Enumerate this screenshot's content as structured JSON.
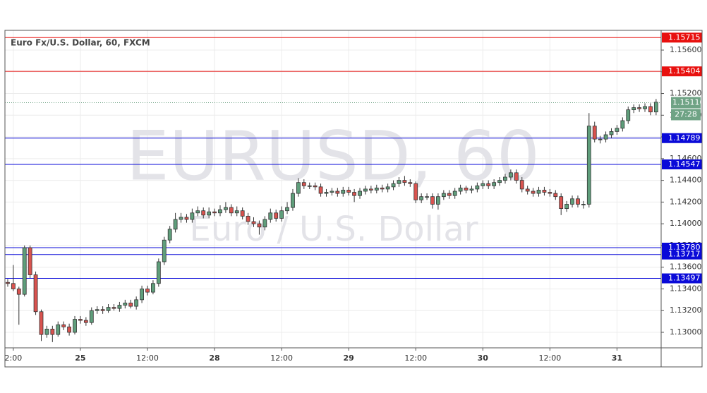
{
  "chart_data": {
    "type": "candlestick",
    "title": "Euro Fx/U.S. Dollar, 60, FXCM",
    "watermark": "EURUSD, 60",
    "watermark_subtitle": "Euro / U.S. Dollar",
    "up_color": "#5f9e7b",
    "down_color": "#d9534f",
    "x": [
      0,
      1,
      2,
      3,
      4,
      5,
      6,
      7,
      8,
      9,
      10,
      11,
      12,
      13,
      14,
      15,
      16,
      17,
      18,
      19,
      20,
      21,
      22,
      23,
      24,
      25,
      26,
      27,
      28,
      29,
      30,
      31,
      32,
      33,
      34,
      35,
      36,
      37,
      38,
      39,
      40,
      41,
      42,
      43,
      44,
      45,
      46,
      47,
      48,
      49,
      50,
      51,
      52,
      53,
      54,
      55,
      56,
      57,
      58,
      59,
      60,
      61,
      62,
      63,
      64,
      65,
      66,
      67,
      68,
      69,
      70,
      71,
      72,
      73,
      74,
      75,
      76,
      77,
      78,
      79,
      80,
      81,
      82,
      83,
      84,
      85,
      86,
      87,
      88,
      89,
      90,
      91,
      92,
      93,
      94,
      95,
      96,
      97,
      98,
      99,
      100,
      101,
      102,
      103,
      104,
      105,
      106,
      107,
      108,
      109,
      110,
      111,
      112,
      113,
      114,
      115,
      116
    ],
    "open": [
      1.1346,
      1.1345,
      1.134,
      1.1335,
      1.1378,
      1.1353,
      1.1319,
      1.1298,
      1.1303,
      1.1298,
      1.1307,
      1.1305,
      1.13,
      1.1312,
      1.1311,
      1.1309,
      1.132,
      1.1321,
      1.132,
      1.1323,
      1.1322,
      1.1325,
      1.1327,
      1.1324,
      1.133,
      1.134,
      1.1337,
      1.1345,
      1.1365,
      1.1385,
      1.1395,
      1.1404,
      1.1406,
      1.1404,
      1.141,
      1.1412,
      1.1408,
      1.1411,
      1.141,
      1.1413,
      1.1415,
      1.141,
      1.1412,
      1.1407,
      1.1402,
      1.14,
      1.1397,
      1.1404,
      1.141,
      1.1405,
      1.1412,
      1.1415,
      1.1428,
      1.1438,
      1.1435,
      1.1435,
      1.1434,
      1.1428,
      1.1429,
      1.143,
      1.1428,
      1.1431,
      1.1429,
      1.1426,
      1.143,
      1.1432,
      1.1431,
      1.1433,
      1.1432,
      1.1434,
      1.1437,
      1.144,
      1.1438,
      1.1437,
      1.1422,
      1.1425,
      1.1425,
      1.1418,
      1.1425,
      1.1428,
      1.1426,
      1.143,
      1.1433,
      1.1431,
      1.1432,
      1.1435,
      1.1437,
      1.1435,
      1.1438,
      1.144,
      1.1443,
      1.1447,
      1.144,
      1.1432,
      1.143,
      1.1428,
      1.1431,
      1.1429,
      1.1428,
      1.1425,
      1.1414,
      1.1418,
      1.1423,
      1.1418,
      1.1418,
      1.149,
      1.1478,
      1.1478,
      1.1482,
      1.1485,
      1.1488,
      1.1495,
      1.1505,
      1.1507,
      1.1506,
      1.1508,
      1.1503
    ],
    "high": [
      1.1349,
      1.1362,
      1.1342,
      1.138,
      1.138,
      1.1356,
      1.1321,
      1.1306,
      1.1306,
      1.131,
      1.131,
      1.1308,
      1.1315,
      1.1315,
      1.1314,
      1.1323,
      1.1324,
      1.1324,
      1.1326,
      1.1326,
      1.1328,
      1.133,
      1.133,
      1.1333,
      1.1343,
      1.1343,
      1.1348,
      1.1368,
      1.1388,
      1.1398,
      1.141,
      1.141,
      1.1409,
      1.1414,
      1.1416,
      1.1415,
      1.1415,
      1.1414,
      1.1417,
      1.142,
      1.1418,
      1.1416,
      1.1415,
      1.141,
      1.1406,
      1.1403,
      1.1407,
      1.1414,
      1.1413,
      1.1416,
      1.142,
      1.1432,
      1.1442,
      1.1441,
      1.1438,
      1.1438,
      1.1437,
      1.1432,
      1.1433,
      1.1433,
      1.1434,
      1.1434,
      1.1432,
      1.1433,
      1.1435,
      1.1435,
      1.1436,
      1.1436,
      1.1437,
      1.144,
      1.1443,
      1.1444,
      1.1441,
      1.1439,
      1.1428,
      1.1428,
      1.1428,
      1.1428,
      1.1431,
      1.1431,
      1.1433,
      1.1436,
      1.1435,
      1.1435,
      1.1438,
      1.144,
      1.144,
      1.1441,
      1.1443,
      1.1446,
      1.145,
      1.145,
      1.1443,
      1.1435,
      1.1433,
      1.1434,
      1.1434,
      1.1432,
      1.1431,
      1.1428,
      1.1421,
      1.1426,
      1.1426,
      1.1421,
      1.1502,
      1.1494,
      1.1481,
      1.1485,
      1.1488,
      1.1491,
      1.1498,
      1.1508,
      1.151,
      1.151,
      1.1511,
      1.1511,
      1.1515
    ],
    "low": [
      1.1342,
      1.1338,
      1.1307,
      1.1333,
      1.135,
      1.1316,
      1.1292,
      1.1295,
      1.1291,
      1.1296,
      1.1302,
      1.1297,
      1.1298,
      1.1308,
      1.1306,
      1.1307,
      1.1317,
      1.1317,
      1.1318,
      1.132,
      1.1319,
      1.1322,
      1.1322,
      1.1321,
      1.1327,
      1.1334,
      1.1335,
      1.1342,
      1.1362,
      1.1382,
      1.1392,
      1.1401,
      1.1401,
      1.1401,
      1.1407,
      1.1405,
      1.1405,
      1.1407,
      1.1407,
      1.141,
      1.1407,
      1.1407,
      1.1404,
      1.1399,
      1.1397,
      1.139,
      1.1394,
      1.1401,
      1.1402,
      1.1402,
      1.1409,
      1.1412,
      1.1425,
      1.1432,
      1.1432,
      1.1431,
      1.1425,
      1.1425,
      1.1426,
      1.1425,
      1.1425,
      1.1426,
      1.142,
      1.1423,
      1.1427,
      1.1428,
      1.1428,
      1.1429,
      1.1429,
      1.1431,
      1.1434,
      1.1435,
      1.1434,
      1.1419,
      1.1419,
      1.1422,
      1.1414,
      1.1413,
      1.1422,
      1.1423,
      1.1423,
      1.1427,
      1.1428,
      1.1428,
      1.1429,
      1.1432,
      1.1432,
      1.1432,
      1.1435,
      1.1437,
      1.144,
      1.1437,
      1.1429,
      1.1427,
      1.1425,
      1.1425,
      1.1426,
      1.1425,
      1.1422,
      1.1408,
      1.1411,
      1.1415,
      1.1415,
      1.1414,
      1.1415,
      1.1475,
      1.1474,
      1.1475,
      1.1479,
      1.1482,
      1.1485,
      1.1492,
      1.1502,
      1.1503,
      1.1503,
      1.15,
      1.15
    ],
    "close": [
      1.1345,
      1.134,
      1.1335,
      1.1378,
      1.1353,
      1.1319,
      1.1298,
      1.1303,
      1.1298,
      1.1307,
      1.1305,
      1.13,
      1.1312,
      1.1311,
      1.1309,
      1.132,
      1.1321,
      1.132,
      1.1323,
      1.1322,
      1.1325,
      1.1327,
      1.1324,
      1.133,
      1.134,
      1.1337,
      1.1345,
      1.1365,
      1.1385,
      1.1395,
      1.1404,
      1.1406,
      1.1404,
      1.141,
      1.1412,
      1.1408,
      1.1411,
      1.141,
      1.1413,
      1.1415,
      1.141,
      1.1412,
      1.1407,
      1.1402,
      1.14,
      1.1397,
      1.1404,
      1.141,
      1.1405,
      1.1412,
      1.1415,
      1.1428,
      1.1438,
      1.1435,
      1.1435,
      1.1434,
      1.1428,
      1.1429,
      1.143,
      1.1428,
      1.1431,
      1.1429,
      1.1426,
      1.143,
      1.1432,
      1.1431,
      1.1433,
      1.1432,
      1.1434,
      1.1437,
      1.144,
      1.1438,
      1.1437,
      1.1422,
      1.1425,
      1.1425,
      1.1418,
      1.1425,
      1.1428,
      1.1426,
      1.143,
      1.1433,
      1.1431,
      1.1432,
      1.1435,
      1.1437,
      1.1435,
      1.1438,
      1.144,
      1.1443,
      1.1447,
      1.144,
      1.1432,
      1.143,
      1.1428,
      1.1431,
      1.1429,
      1.1428,
      1.1425,
      1.1414,
      1.1418,
      1.1423,
      1.1418,
      1.1418,
      1.149,
      1.1478,
      1.1478,
      1.1482,
      1.1485,
      1.1488,
      1.1495,
      1.1505,
      1.1507,
      1.1506,
      1.1508,
      1.1503,
      1.1512
    ],
    "xlim": [
      -0.5,
      116.9
    ],
    "ylim": [
      1.12857,
      1.15782
    ],
    "xticks": [
      {
        "value": 1,
        "label": "2:00"
      },
      {
        "value": 13,
        "label": "25"
      },
      {
        "value": 25,
        "label": "12:00"
      },
      {
        "value": 37,
        "label": "28"
      },
      {
        "value": 49,
        "label": "12:00"
      },
      {
        "value": 61,
        "label": "29"
      },
      {
        "value": 73,
        "label": "12:00"
      },
      {
        "value": 85,
        "label": "30"
      },
      {
        "value": 97,
        "label": "12:00"
      },
      {
        "value": 109,
        "label": "31"
      }
    ],
    "yticks": [
      {
        "value": 1.13,
        "label": "1.13000"
      },
      {
        "value": 1.132,
        "label": "1.13200"
      },
      {
        "value": 1.134,
        "label": "1.13400"
      },
      {
        "value": 1.136,
        "label": "1.13600"
      },
      {
        "value": 1.138,
        "label": "1.13800"
      },
      {
        "value": 1.14,
        "label": "1.14000"
      },
      {
        "value": 1.142,
        "label": "1.14200"
      },
      {
        "value": 1.144,
        "label": "1.14400"
      },
      {
        "value": 1.146,
        "label": "1.14600"
      },
      {
        "value": 1.148,
        "label": "1.14800"
      },
      {
        "value": 1.15,
        "label": "1.15000"
      },
      {
        "value": 1.152,
        "label": "1.15200"
      },
      {
        "value": 1.154,
        "label": "1.15400"
      },
      {
        "value": 1.156,
        "label": "1.15600"
      }
    ],
    "grid": true,
    "levels": [
      {
        "value": 1.15715,
        "label": "1.15715",
        "color": "#e8110f"
      },
      {
        "value": 1.15404,
        "label": "1.15404",
        "color": "#e8110f"
      },
      {
        "value": 1.14789,
        "label": "1.14789",
        "color": "#0a0ad8"
      },
      {
        "value": 1.14547,
        "label": "1.14547",
        "color": "#0a0ad8"
      },
      {
        "value": 1.1378,
        "label": "1.13780",
        "color": "#0a0ad8"
      },
      {
        "value": 1.13717,
        "label": "1.13717",
        "color": "#0a0ad8"
      },
      {
        "value": 1.13497,
        "label": "1.13497",
        "color": "#0a0ad8"
      }
    ],
    "last_price": {
      "value": 1.15116,
      "label": "1.15116",
      "countdown": "27:28",
      "color": "#6fa385"
    }
  }
}
